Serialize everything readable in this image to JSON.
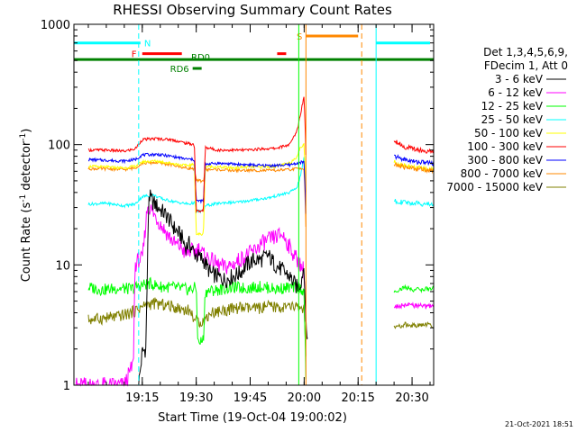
{
  "chart_data": {
    "type": "line",
    "title": "RHESSI Observing Summary Count Rates",
    "xlabel": "Start Time (19-Oct-04 19:00:02)",
    "ylabel_prefix": "Count Rate (s",
    "ylabel_sup": "-1",
    "ylabel_suffix": " detector",
    "ylabel_end": ")",
    "y_scale": "log",
    "ylim": [
      1,
      1000
    ],
    "x_unit": "minutes after 19:00",
    "xlim": [
      -4,
      96
    ],
    "x_ticks": [
      {
        "value": 15,
        "label": "19:15"
      },
      {
        "value": 30,
        "label": "19:30"
      },
      {
        "value": 45,
        "label": "19:45"
      },
      {
        "value": 60,
        "label": "20:00"
      },
      {
        "value": 75,
        "label": "20:15"
      },
      {
        "value": 90,
        "label": "20:30"
      }
    ],
    "y_ticks": [
      {
        "value": 1,
        "label": "1"
      },
      {
        "value": 10,
        "label": "10"
      },
      {
        "value": 100,
        "label": "100"
      },
      {
        "value": 1000,
        "label": "1000"
      }
    ],
    "legend": {
      "placement": "right",
      "header": [
        "Det 1,3,4,5,6,9,",
        "FDecim 1, Att 0"
      ]
    },
    "series": [
      {
        "name": "3 - 6 keV",
        "color": "#000000",
        "points": [
          [
            14,
            1
          ],
          [
            15,
            1.9
          ],
          [
            16,
            2
          ],
          [
            16.8,
            38
          ],
          [
            18,
            33
          ],
          [
            20,
            29
          ],
          [
            22,
            25
          ],
          [
            24,
            20
          ],
          [
            26,
            17
          ],
          [
            27,
            14
          ],
          [
            28,
            15
          ],
          [
            30,
            12
          ],
          [
            32,
            11
          ],
          [
            34,
            8.5
          ],
          [
            36,
            8
          ],
          [
            38,
            7.5
          ],
          [
            40,
            8
          ],
          [
            42,
            8.5
          ],
          [
            44,
            10
          ],
          [
            46,
            11
          ],
          [
            48,
            11
          ],
          [
            50,
            12
          ],
          [
            52,
            10
          ],
          [
            54,
            9
          ],
          [
            56,
            8
          ],
          [
            58,
            6.5
          ],
          [
            59,
            7
          ],
          [
            60,
            10
          ],
          [
            60.5,
            3
          ],
          [
            61,
            2.5
          ]
        ]
      },
      {
        "name": "6 - 12 keV",
        "color": "#ff00ff",
        "points": [
          [
            -4,
            1
          ],
          [
            10,
            1
          ],
          [
            12.5,
            1.5
          ],
          [
            13,
            10
          ],
          [
            14,
            11
          ],
          [
            15,
            11
          ],
          [
            16.5,
            32
          ],
          [
            18,
            27
          ],
          [
            20,
            22
          ],
          [
            22,
            18
          ],
          [
            24,
            15
          ],
          [
            26,
            14
          ],
          [
            27,
            12
          ],
          [
            28,
            13
          ],
          [
            30,
            13
          ],
          [
            31,
            14
          ],
          [
            32,
            12
          ],
          [
            34,
            11
          ],
          [
            36,
            10
          ],
          [
            38,
            9.5
          ],
          [
            40,
            10
          ],
          [
            42,
            11
          ],
          [
            44,
            12
          ],
          [
            46,
            13
          ],
          [
            48,
            15
          ],
          [
            50,
            16
          ],
          [
            52,
            17
          ],
          [
            54,
            18
          ],
          [
            56,
            14
          ],
          [
            58,
            11
          ],
          [
            60,
            9
          ],
          [
            60.5,
            3
          ]
        ]
      },
      {
        "name": "12 - 25 keV",
        "color": "#00ff00",
        "points": [
          [
            0,
            6.5
          ],
          [
            4,
            6.2
          ],
          [
            8,
            6.4
          ],
          [
            12,
            6.3
          ],
          [
            15,
            6.8
          ],
          [
            17,
            7
          ],
          [
            20,
            6.6
          ],
          [
            24,
            6.5
          ],
          [
            28,
            6.2
          ],
          [
            30,
            6.5
          ],
          [
            30.5,
            2.2
          ],
          [
            32,
            2.4
          ],
          [
            32.5,
            6
          ],
          [
            36,
            6.2
          ],
          [
            40,
            6.5
          ],
          [
            44,
            6.4
          ],
          [
            48,
            6.6
          ],
          [
            52,
            6.3
          ],
          [
            56,
            6.5
          ],
          [
            59,
            6.4
          ],
          [
            60,
            6
          ],
          [
            60.5,
            1
          ]
        ]
      },
      {
        "name": "25 - 50 keV",
        "color": "#00ffff",
        "points": [
          [
            0,
            32
          ],
          [
            5,
            32.5
          ],
          [
            10,
            31
          ],
          [
            13,
            32
          ],
          [
            15,
            37
          ],
          [
            18,
            38
          ],
          [
            21,
            35
          ],
          [
            25,
            33
          ],
          [
            28,
            32
          ],
          [
            29.5,
            33
          ],
          [
            30,
            28
          ],
          [
            32,
            28
          ],
          [
            32.5,
            31
          ],
          [
            35,
            32
          ],
          [
            38,
            33
          ],
          [
            41,
            33
          ],
          [
            44,
            34
          ],
          [
            47,
            35
          ],
          [
            50,
            36
          ],
          [
            53,
            38
          ],
          [
            56,
            40
          ],
          [
            58,
            44
          ],
          [
            59,
            55
          ],
          [
            60,
            80
          ],
          [
            60.5,
            30
          ]
        ]
      },
      {
        "name": "50 - 100 keV",
        "color": "#ffff00",
        "points": [
          [
            0,
            66
          ],
          [
            5,
            65
          ],
          [
            10,
            64
          ],
          [
            13,
            66
          ],
          [
            15,
            72
          ],
          [
            19,
            73
          ],
          [
            23,
            70
          ],
          [
            27,
            67
          ],
          [
            29.5,
            68
          ],
          [
            30,
            18
          ],
          [
            32,
            18
          ],
          [
            32.5,
            66
          ],
          [
            36,
            65
          ],
          [
            40,
            64
          ],
          [
            44,
            65
          ],
          [
            48,
            65
          ],
          [
            52,
            66
          ],
          [
            56,
            70
          ],
          [
            58,
            80
          ],
          [
            59,
            95
          ],
          [
            60,
            100
          ],
          [
            60.5,
            40
          ]
        ]
      },
      {
        "name": "100 - 300 keV",
        "color": "#ff0000",
        "points": [
          [
            0,
            90
          ],
          [
            5,
            90
          ],
          [
            10,
            88
          ],
          [
            13,
            92
          ],
          [
            15,
            110
          ],
          [
            19,
            112
          ],
          [
            23,
            110
          ],
          [
            27,
            103
          ],
          [
            29.5,
            100
          ],
          [
            30,
            28
          ],
          [
            32,
            28
          ],
          [
            32.5,
            95
          ],
          [
            36,
            90
          ],
          [
            40,
            90
          ],
          [
            44,
            90
          ],
          [
            48,
            92
          ],
          [
            52,
            93
          ],
          [
            56,
            100
          ],
          [
            58,
            130
          ],
          [
            59,
            180
          ],
          [
            60,
            260
          ],
          [
            60.5,
            80
          ]
        ]
      },
      {
        "name": "300 - 800 keV",
        "color": "#0000ff",
        "points": [
          [
            0,
            75
          ],
          [
            5,
            74
          ],
          [
            10,
            73
          ],
          [
            13,
            75
          ],
          [
            15,
            82
          ],
          [
            19,
            83
          ],
          [
            23,
            80
          ],
          [
            27,
            76
          ],
          [
            29.5,
            75
          ],
          [
            30,
            34
          ],
          [
            32,
            34
          ],
          [
            32.5,
            69
          ],
          [
            36,
            70
          ],
          [
            40,
            69
          ],
          [
            44,
            68
          ],
          [
            48,
            67
          ],
          [
            52,
            67
          ],
          [
            56,
            68
          ],
          [
            58,
            70
          ],
          [
            60,
            72
          ],
          [
            60.5,
            25
          ]
        ]
      },
      {
        "name": "800 - 7000 keV",
        "color": "#ff8800",
        "points": [
          [
            0,
            63
          ],
          [
            5,
            63
          ],
          [
            10,
            62
          ],
          [
            13,
            64
          ],
          [
            15,
            70
          ],
          [
            19,
            71
          ],
          [
            23,
            68
          ],
          [
            27,
            64
          ],
          [
            29.5,
            63
          ],
          [
            30,
            50
          ],
          [
            32,
            50
          ],
          [
            32.5,
            62
          ],
          [
            36,
            62
          ],
          [
            40,
            61
          ],
          [
            44,
            61
          ],
          [
            48,
            61
          ],
          [
            52,
            61
          ],
          [
            56,
            62
          ],
          [
            58,
            63
          ],
          [
            60,
            64
          ],
          [
            60.5,
            20
          ]
        ]
      },
      {
        "name": "7000 - 15000 keV",
        "color": "#808000",
        "points": [
          [
            0,
            3.5
          ],
          [
            4,
            3.6
          ],
          [
            8,
            3.7
          ],
          [
            12,
            4
          ],
          [
            15,
            4.5
          ],
          [
            18,
            4.8
          ],
          [
            22,
            4.6
          ],
          [
            26,
            4.3
          ],
          [
            28,
            4.2
          ],
          [
            30,
            3.4
          ],
          [
            32,
            3.4
          ],
          [
            34,
            4
          ],
          [
            38,
            4.2
          ],
          [
            42,
            4.4
          ],
          [
            46,
            4.3
          ],
          [
            50,
            4.5
          ],
          [
            54,
            4.4
          ],
          [
            58,
            4.5
          ],
          [
            60,
            4.3
          ],
          [
            60.5,
            1.5
          ]
        ]
      }
    ],
    "series_after_gap": [
      {
        "color": "#ff0000",
        "points": [
          [
            85,
            110
          ],
          [
            88,
            95
          ],
          [
            91,
            92
          ],
          [
            94,
            88
          ],
          [
            96,
            87
          ]
        ]
      },
      {
        "color": "#0000ff",
        "points": [
          [
            85,
            80
          ],
          [
            88,
            75
          ],
          [
            91,
            72
          ],
          [
            94,
            71
          ],
          [
            96,
            70
          ]
        ]
      },
      {
        "color": "#ffff00",
        "points": [
          [
            85,
            72
          ],
          [
            88,
            67
          ],
          [
            91,
            64
          ],
          [
            94,
            63
          ],
          [
            96,
            62
          ]
        ]
      },
      {
        "color": "#ff8800",
        "points": [
          [
            85,
            68
          ],
          [
            88,
            65
          ],
          [
            91,
            63
          ],
          [
            94,
            62
          ],
          [
            96,
            61
          ]
        ]
      },
      {
        "color": "#00ffff",
        "points": [
          [
            85,
            34
          ],
          [
            88,
            33
          ],
          [
            91,
            32.5
          ],
          [
            94,
            32
          ],
          [
            96,
            32
          ]
        ]
      },
      {
        "color": "#00ff00",
        "points": [
          [
            85,
            6
          ],
          [
            88,
            6.5
          ],
          [
            91,
            6.2
          ],
          [
            94,
            6.3
          ],
          [
            96,
            6.4
          ]
        ]
      },
      {
        "color": "#ff00ff",
        "points": [
          [
            85,
            4.5
          ],
          [
            88,
            4.6
          ],
          [
            91,
            4.6
          ],
          [
            94,
            4.5
          ],
          [
            96,
            4.6
          ]
        ]
      },
      {
        "color": "#808000",
        "points": [
          [
            85,
            3
          ],
          [
            88,
            3.2
          ],
          [
            91,
            3.1
          ],
          [
            94,
            3.2
          ],
          [
            96,
            3.1
          ]
        ]
      }
    ],
    "status_bars": [
      {
        "label": "N",
        "color": "#00ffff",
        "y": 700,
        "x_start": -4,
        "x_end": 14.5
      },
      {
        "label": "",
        "color": "#00ffff",
        "y": 700,
        "x_start": 80,
        "x_end": 95
      },
      {
        "label": "S",
        "color": "#ff8800",
        "y": 800,
        "x_start": 60.5,
        "x_end": 75
      },
      {
        "label": "F",
        "color": "#ff0000",
        "y": 570,
        "x_start": 15,
        "x_end": 26
      },
      {
        "label": "",
        "color": "#ff0000",
        "y": 570,
        "x_start": 52.5,
        "x_end": 55
      },
      {
        "label": "RD0",
        "color": "#008000",
        "y": 510,
        "x_start": -4,
        "x_end": 96
      },
      {
        "label": "RD6",
        "color": "#008000",
        "y": 430,
        "x_start": 29,
        "x_end": 31.5
      }
    ],
    "vertical_markers": [
      {
        "x": 14,
        "color": "#00ffff",
        "style": "dashed"
      },
      {
        "x": 58.5,
        "color": "#00ff00",
        "style": "solid"
      },
      {
        "x": 60.5,
        "color": "#ff8800",
        "style": "solid"
      },
      {
        "x": 76,
        "color": "#ff8800",
        "style": "dashed"
      },
      {
        "x": 80,
        "color": "#00ffff",
        "style": "solid"
      },
      {
        "x": 96,
        "color": "#00ffff",
        "style": "dashed"
      }
    ],
    "timestamp": "21-Oct-2021 18:51"
  }
}
